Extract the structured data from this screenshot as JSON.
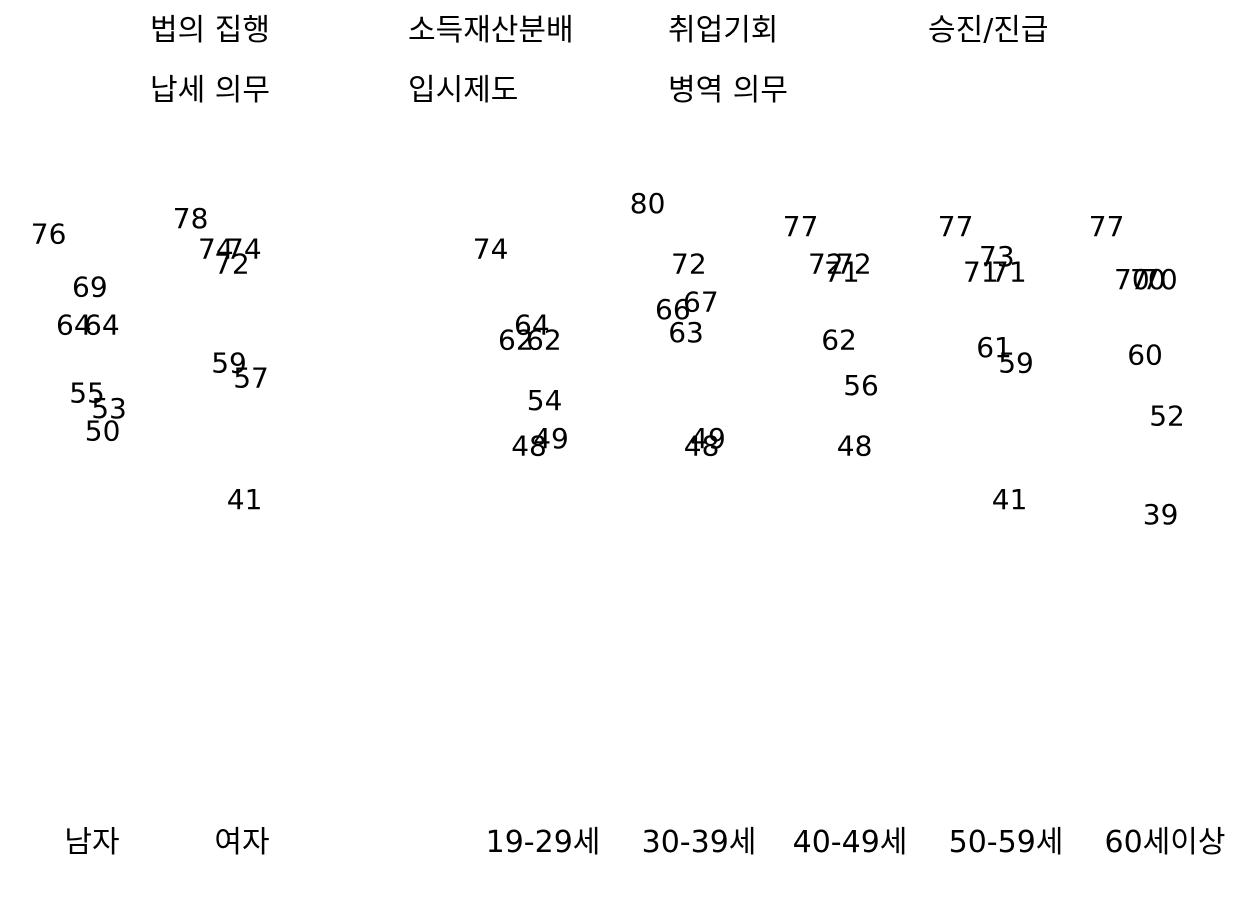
{
  "chart_data": {
    "type": "scatter",
    "title": "",
    "xlabel": "",
    "ylabel": "",
    "ylim": [
      30,
      85
    ],
    "grid": false,
    "legend": "top",
    "axis_visible": false,
    "categories": [
      "남자",
      "여자",
      "19-29세",
      "30-39세",
      "40-49세",
      "50-59세",
      "60세이상"
    ],
    "series": [
      {
        "name": "법의 집행",
        "values": [
          76,
          78,
          74,
          80,
          77,
          77,
          77
        ]
      },
      {
        "name": "소득재산분배",
        "values": [
          69,
          72,
          64,
          72,
          71,
          73,
          70
        ]
      },
      {
        "name": "취업기회",
        "values": [
          64,
          74,
          62,
          66,
          72,
          71,
          70
        ]
      },
      {
        "name": "승진/진급",
        "values": [
          64,
          74,
          62,
          67,
          72,
          71,
          70
        ]
      },
      {
        "name": "납세 의무",
        "values": [
          55,
          59,
          48,
          63,
          62,
          61,
          60
        ]
      },
      {
        "name": "입시제도",
        "values": [
          53,
          57,
          49,
          49,
          56,
          59,
          52
        ]
      },
      {
        "name": "병역 의무",
        "values": [
          50,
          41,
          54,
          48,
          48,
          41,
          39
        ]
      }
    ]
  }
}
